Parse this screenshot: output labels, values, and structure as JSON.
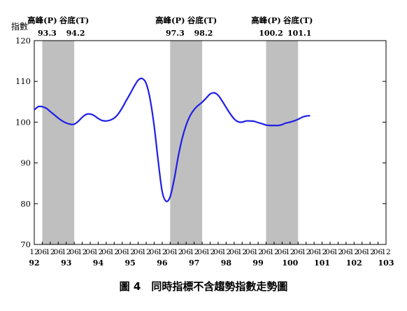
{
  "caption": "圖 4　同時指標不含趨勢指數走勢圖",
  "chart_data": {
    "type": "line",
    "ylabel": "指數",
    "ylim": [
      70,
      120
    ],
    "yticks": [
      70,
      80,
      90,
      100,
      110,
      120
    ],
    "x_range": [
      "1992-12",
      "2014-12"
    ],
    "xtick_months": [
      "12",
      "06",
      "12",
      "06",
      "12",
      "06",
      "12",
      "06",
      "12",
      "06",
      "12",
      "06",
      "12",
      "06",
      "12",
      "06",
      "12",
      "06",
      "12",
      "06",
      "12",
      "06",
      "12",
      "06",
      "12",
      "06",
      "12",
      "06",
      "12",
      "06",
      "12",
      "06",
      "12",
      "06",
      "12",
      "06",
      "12",
      "06",
      "12",
      "06",
      "12",
      "06",
      "12",
      "06",
      "12"
    ],
    "year_labels": [
      {
        "label": "92",
        "x": "1992-12"
      },
      {
        "label": "93",
        "x": "1994-12"
      },
      {
        "label": "94",
        "x": "1996-12"
      },
      {
        "label": "95",
        "x": "1998-12"
      },
      {
        "label": "96",
        "x": "2000-12"
      },
      {
        "label": "97",
        "x": "2002-12"
      },
      {
        "label": "98",
        "x": "2004-12"
      },
      {
        "label": "99",
        "x": "2006-12"
      },
      {
        "label": "100",
        "x": "2008-12"
      },
      {
        "label": "101",
        "x": "2010-12"
      },
      {
        "label": "102",
        "x": "2012-12"
      },
      {
        "label": "103",
        "x": "2014-12"
      }
    ],
    "shaded_periods": [
      {
        "start": "1993-06",
        "end": "1995-06",
        "peak_label": "高峰(P)",
        "peak_date": "93.3",
        "trough_label": "谷底(T)",
        "trough_date": "94.2"
      },
      {
        "start": "2001-06",
        "end": "2003-06",
        "peak_label": "高峰(P)",
        "peak_date": "97.3",
        "trough_label": "谷底(T)",
        "trough_date": "98.2"
      },
      {
        "start": "2007-06",
        "end": "2009-06",
        "peak_label": "高峰(P)",
        "peak_date": "100.2",
        "trough_label": "谷底(T)",
        "trough_date": "101.1"
      }
    ],
    "series": [
      {
        "color": "#1f1fe6",
        "points": [
          [
            "1992-12",
            103.0
          ],
          [
            "1993-03",
            103.8
          ],
          [
            "1993-06",
            103.8
          ],
          [
            "1993-09",
            103.4
          ],
          [
            "1993-12",
            102.6
          ],
          [
            "1994-03",
            101.8
          ],
          [
            "1994-06",
            101.0
          ],
          [
            "1994-09",
            100.3
          ],
          [
            "1994-12",
            99.8
          ],
          [
            "1995-03",
            99.5
          ],
          [
            "1995-06",
            99.5
          ],
          [
            "1995-09",
            100.2
          ],
          [
            "1995-12",
            101.2
          ],
          [
            "1996-03",
            101.9
          ],
          [
            "1996-06",
            102.0
          ],
          [
            "1996-09",
            101.6
          ],
          [
            "1996-12",
            100.9
          ],
          [
            "1997-03",
            100.4
          ],
          [
            "1997-06",
            100.3
          ],
          [
            "1997-09",
            100.5
          ],
          [
            "1997-12",
            101.0
          ],
          [
            "1998-03",
            102.0
          ],
          [
            "1998-06",
            103.5
          ],
          [
            "1998-09",
            105.3
          ],
          [
            "1998-12",
            107.0
          ],
          [
            "1999-03",
            108.8
          ],
          [
            "1999-06",
            110.3
          ],
          [
            "1999-09",
            110.7
          ],
          [
            "1999-12",
            109.5
          ],
          [
            "2000-03",
            105.5
          ],
          [
            "2000-06",
            99.0
          ],
          [
            "2000-09",
            90.5
          ],
          [
            "2000-12",
            83.0
          ],
          [
            "2001-03",
            80.6
          ],
          [
            "2001-06",
            81.7
          ],
          [
            "2001-09",
            86.0
          ],
          [
            "2001-12",
            91.5
          ],
          [
            "2002-03",
            96.0
          ],
          [
            "2002-06",
            99.3
          ],
          [
            "2002-09",
            101.6
          ],
          [
            "2002-12",
            103.1
          ],
          [
            "2003-03",
            104.1
          ],
          [
            "2003-06",
            104.9
          ],
          [
            "2003-09",
            105.9
          ],
          [
            "2003-12",
            106.9
          ],
          [
            "2004-03",
            107.2
          ],
          [
            "2004-06",
            106.6
          ],
          [
            "2004-09",
            105.2
          ],
          [
            "2004-12",
            103.6
          ],
          [
            "2005-03",
            102.1
          ],
          [
            "2005-06",
            100.8
          ],
          [
            "2005-09",
            100.1
          ],
          [
            "2005-12",
            100.0
          ],
          [
            "2006-03",
            100.3
          ],
          [
            "2006-06",
            100.3
          ],
          [
            "2006-09",
            100.2
          ],
          [
            "2006-12",
            99.9
          ],
          [
            "2007-03",
            99.6
          ],
          [
            "2007-06",
            99.3
          ],
          [
            "2007-09",
            99.2
          ],
          [
            "2007-12",
            99.2
          ],
          [
            "2008-03",
            99.2
          ],
          [
            "2008-06",
            99.4
          ],
          [
            "2008-09",
            99.8
          ],
          [
            "2008-12",
            100.0
          ],
          [
            "2009-03",
            100.3
          ],
          [
            "2009-06",
            100.7
          ],
          [
            "2009-09",
            101.2
          ],
          [
            "2009-12",
            101.5
          ],
          [
            "2010-03",
            101.6
          ]
        ]
      }
    ]
  }
}
